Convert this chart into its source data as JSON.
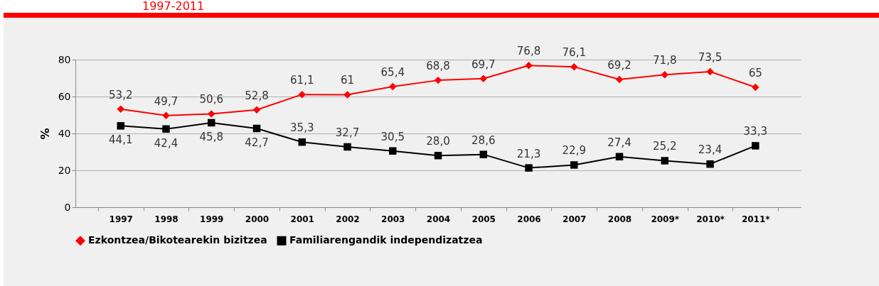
{
  "chart_data": {
    "type": "line",
    "title": "1997-2011",
    "ylabel": "%",
    "categories": [
      "1997",
      "1998",
      "1999",
      "2000",
      "2001",
      "2002",
      "2003",
      "2004",
      "2005",
      "2006",
      "2007",
      "2008",
      "2009*",
      "2010*",
      "2011*"
    ],
    "series": [
      {
        "name": "Ezkontzea/Bikotearekin bizitzea",
        "color": "#ff0000",
        "marker": "diamond",
        "values": [
          53.2,
          49.7,
          50.6,
          52.8,
          61.1,
          61,
          65.4,
          68.8,
          69.7,
          76.8,
          76.1,
          69.2,
          71.8,
          73.5,
          65
        ],
        "value_labels": [
          "53,2",
          "49,7",
          "50,6",
          "52,8",
          "61,1",
          "61",
          "65,4",
          "68,8",
          "69,7",
          "76,8",
          "76,1",
          "69,2",
          "71,8",
          "73,5",
          "65"
        ]
      },
      {
        "name": "Familiarengandik independizatzea",
        "color": "#000000",
        "marker": "square",
        "values": [
          44.1,
          42.4,
          45.8,
          42.7,
          35.3,
          32.7,
          30.5,
          28.0,
          28.6,
          21.3,
          22.9,
          27.4,
          25.2,
          23.4,
          33.3
        ],
        "value_labels": [
          "44,1",
          "42,4",
          "45,8",
          "42,7",
          "35,3",
          "32,7",
          "30,5",
          "28,0",
          "28,6",
          "21,3",
          "22,9",
          "27,4",
          "25,2",
          "23,4",
          "33,3"
        ]
      }
    ],
    "ylim": [
      0,
      80
    ],
    "yticks": [
      0,
      20,
      40,
      60,
      80
    ],
    "grid": "y",
    "legend": "bottom",
    "line_style": "solid"
  }
}
